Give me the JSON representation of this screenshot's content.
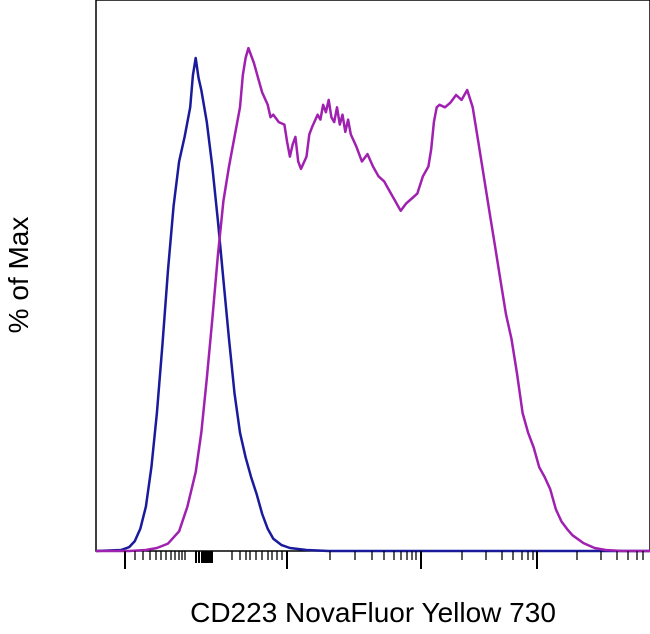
{
  "chart_data": {
    "type": "line",
    "title": "",
    "xlabel": "CD223 NovaFluor Yellow 730",
    "ylabel": "% of Max",
    "x_scale": "log",
    "x_tick_labels": [],
    "y_tick_labels": [],
    "grid": false,
    "legend": "none",
    "xlim": [
      0,
      1
    ],
    "ylim": [
      0,
      100
    ],
    "series": [
      {
        "color": "#1a1a9c",
        "points": [
          [
            0.0,
            0.0
          ],
          [
            0.045,
            0.2
          ],
          [
            0.06,
            0.8
          ],
          [
            0.07,
            2.0
          ],
          [
            0.08,
            4.5
          ],
          [
            0.09,
            9.0
          ],
          [
            0.1,
            17.0
          ],
          [
            0.11,
            28.0
          ],
          [
            0.12,
            42.0
          ],
          [
            0.13,
            57.0
          ],
          [
            0.14,
            70.0
          ],
          [
            0.15,
            79.0
          ],
          [
            0.16,
            84.0
          ],
          [
            0.17,
            90.0
          ],
          [
            0.175,
            96.5
          ],
          [
            0.18,
            100.0
          ],
          [
            0.185,
            96.0
          ],
          [
            0.19,
            93.5
          ],
          [
            0.2,
            87.0
          ],
          [
            0.21,
            78.0
          ],
          [
            0.22,
            67.0
          ],
          [
            0.23,
            55.0
          ],
          [
            0.24,
            43.0
          ],
          [
            0.25,
            32.0
          ],
          [
            0.26,
            24.0
          ],
          [
            0.27,
            19.0
          ],
          [
            0.28,
            15.0
          ],
          [
            0.29,
            11.5
          ],
          [
            0.3,
            7.5
          ],
          [
            0.31,
            4.5
          ],
          [
            0.32,
            2.5
          ],
          [
            0.335,
            1.2
          ],
          [
            0.35,
            0.6
          ],
          [
            0.38,
            0.2
          ],
          [
            0.42,
            0.0
          ],
          [
            1.0,
            0.0
          ]
        ]
      },
      {
        "color": "#a020b0",
        "points": [
          [
            0.0,
            0.0
          ],
          [
            0.06,
            0.0
          ],
          [
            0.09,
            0.2
          ],
          [
            0.11,
            0.6
          ],
          [
            0.13,
            1.5
          ],
          [
            0.15,
            4.0
          ],
          [
            0.165,
            9.0
          ],
          [
            0.18,
            16.0
          ],
          [
            0.19,
            24.0
          ],
          [
            0.2,
            35.0
          ],
          [
            0.21,
            47.0
          ],
          [
            0.22,
            60.0
          ],
          [
            0.23,
            71.0
          ],
          [
            0.24,
            78.0
          ],
          [
            0.25,
            84.0
          ],
          [
            0.26,
            90.0
          ],
          [
            0.265,
            96.5
          ],
          [
            0.27,
            100.0
          ],
          [
            0.275,
            102.0
          ],
          [
            0.285,
            99.0
          ],
          [
            0.295,
            95.0
          ],
          [
            0.3,
            93.0
          ],
          [
            0.31,
            90.5
          ],
          [
            0.315,
            88.0
          ],
          [
            0.32,
            88.5
          ],
          [
            0.33,
            87.0
          ],
          [
            0.34,
            86.5
          ],
          [
            0.345,
            83.0
          ],
          [
            0.35,
            80.0
          ],
          [
            0.355,
            82.5
          ],
          [
            0.36,
            84.0
          ],
          [
            0.365,
            79.0
          ],
          [
            0.37,
            77.5
          ],
          [
            0.38,
            80.0
          ],
          [
            0.385,
            84.5
          ],
          [
            0.39,
            86.0
          ],
          [
            0.4,
            88.5
          ],
          [
            0.405,
            87.5
          ],
          [
            0.41,
            90.5
          ],
          [
            0.415,
            89.0
          ],
          [
            0.42,
            91.5
          ],
          [
            0.425,
            88.0
          ],
          [
            0.43,
            87.0
          ],
          [
            0.435,
            90.0
          ],
          [
            0.44,
            86.5
          ],
          [
            0.445,
            88.5
          ],
          [
            0.45,
            85.0
          ],
          [
            0.455,
            87.5
          ],
          [
            0.46,
            84.5
          ],
          [
            0.47,
            82.0
          ],
          [
            0.48,
            79.0
          ],
          [
            0.49,
            80.5
          ],
          [
            0.5,
            78.0
          ],
          [
            0.51,
            76.0
          ],
          [
            0.52,
            75.0
          ],
          [
            0.53,
            73.0
          ],
          [
            0.54,
            71.0
          ],
          [
            0.55,
            69.0
          ],
          [
            0.56,
            70.5
          ],
          [
            0.57,
            71.5
          ],
          [
            0.58,
            72.5
          ],
          [
            0.59,
            76.0
          ],
          [
            0.6,
            78.0
          ],
          [
            0.605,
            81.5
          ],
          [
            0.61,
            87.0
          ],
          [
            0.615,
            90.0
          ],
          [
            0.62,
            90.5
          ],
          [
            0.63,
            90.0
          ],
          [
            0.64,
            91.0
          ],
          [
            0.65,
            92.5
          ],
          [
            0.66,
            91.5
          ],
          [
            0.67,
            93.5
          ],
          [
            0.68,
            90.0
          ],
          [
            0.69,
            83.0
          ],
          [
            0.7,
            76.0
          ],
          [
            0.71,
            69.0
          ],
          [
            0.72,
            62.0
          ],
          [
            0.73,
            55.0
          ],
          [
            0.74,
            48.0
          ],
          [
            0.75,
            43.0
          ],
          [
            0.76,
            36.0
          ],
          [
            0.77,
            28.0
          ],
          [
            0.78,
            24.0
          ],
          [
            0.79,
            21.0
          ],
          [
            0.8,
            17.0
          ],
          [
            0.81,
            15.0
          ],
          [
            0.82,
            12.5
          ],
          [
            0.83,
            8.5
          ],
          [
            0.84,
            6.0
          ],
          [
            0.85,
            4.5
          ],
          [
            0.86,
            3.2
          ],
          [
            0.88,
            1.6
          ],
          [
            0.9,
            0.6
          ],
          [
            0.92,
            0.2
          ],
          [
            0.95,
            0.0
          ],
          [
            1.0,
            0.0
          ]
        ]
      }
    ]
  }
}
